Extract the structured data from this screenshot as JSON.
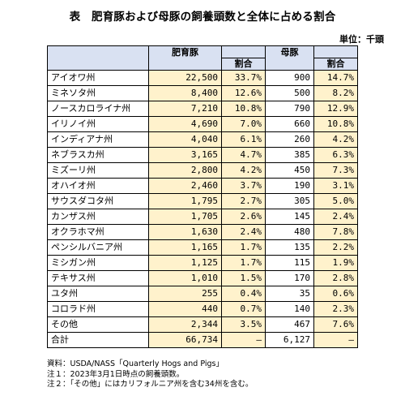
{
  "title": "表　肥育豚および母豚の飼養頭数と全体に占める割合",
  "unit": "単位：千頭",
  "headers": {
    "fattening": "肥育豚",
    "fattening_share": "割合",
    "sow": "母豚",
    "sow_share": "割合"
  },
  "rows": [
    {
      "state": "アイオワ州",
      "fattening": "22,500",
      "fattening_share": "33.7%",
      "sow": "900",
      "sow_share": "14.7%"
    },
    {
      "state": "ミネソタ州",
      "fattening": "8,400",
      "fattening_share": "12.6%",
      "sow": "500",
      "sow_share": "8.2%"
    },
    {
      "state": "ノースカロライナ州",
      "fattening": "7,210",
      "fattening_share": "10.8%",
      "sow": "790",
      "sow_share": "12.9%"
    },
    {
      "state": "イリノイ州",
      "fattening": "4,690",
      "fattening_share": "7.0%",
      "sow": "660",
      "sow_share": "10.8%"
    },
    {
      "state": "インディアナ州",
      "fattening": "4,040",
      "fattening_share": "6.1%",
      "sow": "260",
      "sow_share": "4.2%"
    },
    {
      "state": "ネブラスカ州",
      "fattening": "3,165",
      "fattening_share": "4.7%",
      "sow": "385",
      "sow_share": "6.3%"
    },
    {
      "state": "ミズーリ州",
      "fattening": "2,800",
      "fattening_share": "4.2%",
      "sow": "450",
      "sow_share": "7.3%"
    },
    {
      "state": "オハイオ州",
      "fattening": "2,460",
      "fattening_share": "3.7%",
      "sow": "190",
      "sow_share": "3.1%"
    },
    {
      "state": "サウスダコタ州",
      "fattening": "1,795",
      "fattening_share": "2.7%",
      "sow": "305",
      "sow_share": "5.0%"
    },
    {
      "state": "カンザス州",
      "fattening": "1,705",
      "fattening_share": "2.6%",
      "sow": "145",
      "sow_share": "2.4%"
    },
    {
      "state": "オクラホマ州",
      "fattening": "1,630",
      "fattening_share": "2.4%",
      "sow": "480",
      "sow_share": "7.8%"
    },
    {
      "state": "ペンシルバニア州",
      "fattening": "1,165",
      "fattening_share": "1.7%",
      "sow": "135",
      "sow_share": "2.2%"
    },
    {
      "state": "ミシガン州",
      "fattening": "1,125",
      "fattening_share": "1.7%",
      "sow": "115",
      "sow_share": "1.9%"
    },
    {
      "state": "テキサス州",
      "fattening": "1,010",
      "fattening_share": "1.5%",
      "sow": "170",
      "sow_share": "2.8%"
    },
    {
      "state": "ユタ州",
      "fattening": "255",
      "fattening_share": "0.4%",
      "sow": "35",
      "sow_share": "0.6%"
    },
    {
      "state": "コロラド州",
      "fattening": "440",
      "fattening_share": "0.7%",
      "sow": "140",
      "sow_share": "2.3%"
    },
    {
      "state": "その他",
      "fattening": "2,344",
      "fattening_share": "3.5%",
      "sow": "467",
      "sow_share": "7.6%"
    }
  ],
  "total": {
    "state": "合計",
    "fattening": "66,734",
    "fattening_share": "–",
    "sow": "6,127",
    "sow_share": "–"
  },
  "notes": [
    "資料：USDA/NASS「Quarterly Hogs and Pigs」",
    "注１：2023年3月1日時点の飼養頭数。",
    "注２：「その他」にはカリフォルニア州を含む34州を含む。"
  ]
}
